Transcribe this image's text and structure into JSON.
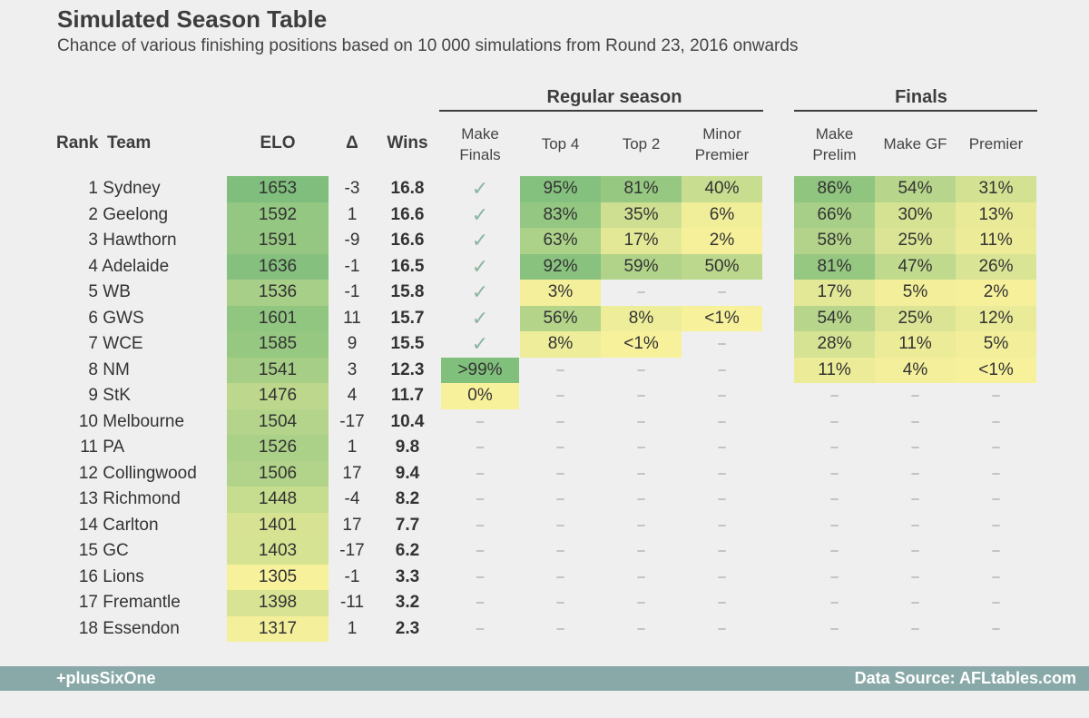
{
  "title": "Simulated Season Table",
  "subtitle": "Chance of various finishing positions based on 10 000 simulations from Round 23, 2016 onwards",
  "groups": {
    "regular": "Regular season",
    "finals": "Finals"
  },
  "headers": {
    "rank": "Rank",
    "team": "Team",
    "elo": "ELO",
    "delta": "Δ",
    "wins": "Wins",
    "make_finals": [
      "Make",
      "Finals"
    ],
    "top4": "Top 4",
    "top2": "Top 2",
    "minor_premier": [
      "Minor",
      "Premier"
    ],
    "make_prelim": [
      "Make",
      "Prelim"
    ],
    "make_gf": "Make GF",
    "premier": "Premier"
  },
  "symbols": {
    "check": "✓",
    "dash": "–"
  },
  "footer": {
    "left": "+plusSixOne",
    "right": "Data Source: AFLtables.com"
  },
  "chart_data": {
    "type": "table",
    "columns": [
      "Rank",
      "Team",
      "ELO",
      "Δ",
      "Wins",
      "Make Finals",
      "Top 4",
      "Top 2",
      "Minor Premier",
      "Make Prelim",
      "Make GF",
      "Premier"
    ],
    "rows": [
      {
        "rank": 1,
        "team": "Sydney",
        "elo": 1653,
        "delta": "-3",
        "wins": "16.8",
        "make_finals": "✓",
        "top4": "95%",
        "top2": "81%",
        "minor": "40%",
        "prelim": "86%",
        "gf": "54%",
        "premier": "31%"
      },
      {
        "rank": 2,
        "team": "Geelong",
        "elo": 1592,
        "delta": "1",
        "wins": "16.6",
        "make_finals": "✓",
        "top4": "83%",
        "top2": "35%",
        "minor": "6%",
        "prelim": "66%",
        "gf": "30%",
        "premier": "13%"
      },
      {
        "rank": 3,
        "team": "Hawthorn",
        "elo": 1591,
        "delta": "-9",
        "wins": "16.6",
        "make_finals": "✓",
        "top4": "63%",
        "top2": "17%",
        "minor": "2%",
        "prelim": "58%",
        "gf": "25%",
        "premier": "11%"
      },
      {
        "rank": 4,
        "team": "Adelaide",
        "elo": 1636,
        "delta": "-1",
        "wins": "16.5",
        "make_finals": "✓",
        "top4": "92%",
        "top2": "59%",
        "minor": "50%",
        "prelim": "81%",
        "gf": "47%",
        "premier": "26%"
      },
      {
        "rank": 5,
        "team": "WB",
        "elo": 1536,
        "delta": "-1",
        "wins": "15.8",
        "make_finals": "✓",
        "top4": "3%",
        "top2": "–",
        "minor": "–",
        "prelim": "17%",
        "gf": "5%",
        "premier": "2%"
      },
      {
        "rank": 6,
        "team": "GWS",
        "elo": 1601,
        "delta": "11",
        "wins": "15.7",
        "make_finals": "✓",
        "top4": "56%",
        "top2": "8%",
        "minor": "<1%",
        "prelim": "54%",
        "gf": "25%",
        "premier": "12%"
      },
      {
        "rank": 7,
        "team": "WCE",
        "elo": 1585,
        "delta": "9",
        "wins": "15.5",
        "make_finals": "✓",
        "top4": "8%",
        "top2": "<1%",
        "minor": "–",
        "prelim": "28%",
        "gf": "11%",
        "premier": "5%"
      },
      {
        "rank": 8,
        "team": "NM",
        "elo": 1541,
        "delta": "3",
        "wins": "12.3",
        "make_finals": ">99%",
        "top4": "–",
        "top2": "–",
        "minor": "–",
        "prelim": "11%",
        "gf": "4%",
        "premier": "<1%"
      },
      {
        "rank": 9,
        "team": "StK",
        "elo": 1476,
        "delta": "4",
        "wins": "11.7",
        "make_finals": "0%",
        "top4": "–",
        "top2": "–",
        "minor": "–",
        "prelim": "–",
        "gf": "–",
        "premier": "–"
      },
      {
        "rank": 10,
        "team": "Melbourne",
        "elo": 1504,
        "delta": "-17",
        "wins": "10.4",
        "make_finals": "–",
        "top4": "–",
        "top2": "–",
        "minor": "–",
        "prelim": "–",
        "gf": "–",
        "premier": "–"
      },
      {
        "rank": 11,
        "team": "PA",
        "elo": 1526,
        "delta": "1",
        "wins": "9.8",
        "make_finals": "–",
        "top4": "–",
        "top2": "–",
        "minor": "–",
        "prelim": "–",
        "gf": "–",
        "premier": "–"
      },
      {
        "rank": 12,
        "team": "Collingwood",
        "elo": 1506,
        "delta": "17",
        "wins": "9.4",
        "make_finals": "–",
        "top4": "–",
        "top2": "–",
        "minor": "–",
        "prelim": "–",
        "gf": "–",
        "premier": "–"
      },
      {
        "rank": 13,
        "team": "Richmond",
        "elo": 1448,
        "delta": "-4",
        "wins": "8.2",
        "make_finals": "–",
        "top4": "–",
        "top2": "–",
        "minor": "–",
        "prelim": "–",
        "gf": "–",
        "premier": "–"
      },
      {
        "rank": 14,
        "team": "Carlton",
        "elo": 1401,
        "delta": "17",
        "wins": "7.7",
        "make_finals": "–",
        "top4": "–",
        "top2": "–",
        "minor": "–",
        "prelim": "–",
        "gf": "–",
        "premier": "–"
      },
      {
        "rank": 15,
        "team": "GC",
        "elo": 1403,
        "delta": "-17",
        "wins": "6.2",
        "make_finals": "–",
        "top4": "–",
        "top2": "–",
        "minor": "–",
        "prelim": "–",
        "gf": "–",
        "premier": "–"
      },
      {
        "rank": 16,
        "team": "Lions",
        "elo": 1305,
        "delta": "-1",
        "wins": "3.3",
        "make_finals": "–",
        "top4": "–",
        "top2": "–",
        "minor": "–",
        "prelim": "–",
        "gf": "–",
        "premier": "–"
      },
      {
        "rank": 17,
        "team": "Fremantle",
        "elo": 1398,
        "delta": "-11",
        "wins": "3.2",
        "make_finals": "–",
        "top4": "–",
        "top2": "–",
        "minor": "–",
        "prelim": "–",
        "gf": "–",
        "premier": "–"
      },
      {
        "rank": 18,
        "team": "Essendon",
        "elo": 1317,
        "delta": "1",
        "wins": "2.3",
        "make_finals": "–",
        "top4": "–",
        "top2": "–",
        "minor": "–",
        "prelim": "–",
        "gf": "–",
        "premier": "–"
      }
    ],
    "color_scale": {
      "low": "#f8f19c",
      "high": "#7fbe7c"
    }
  }
}
